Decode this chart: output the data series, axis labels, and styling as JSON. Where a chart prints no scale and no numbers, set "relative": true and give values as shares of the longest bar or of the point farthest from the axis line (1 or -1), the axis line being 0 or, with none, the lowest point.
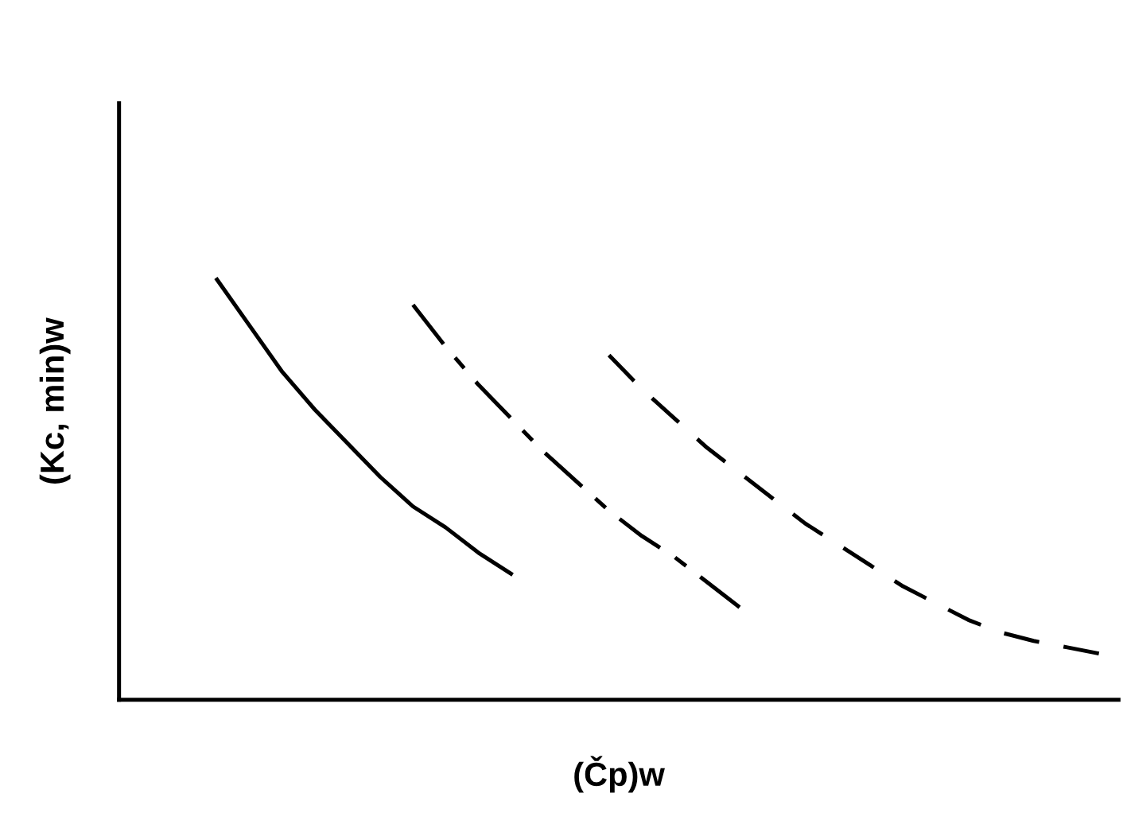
{
  "chart_data": {
    "type": "line",
    "relative": true,
    "xlabel": "(Čp)w",
    "ylabel": "(Kc, min)w",
    "grid": false,
    "legend": false,
    "categories": [
      null,
      null,
      null,
      null,
      null,
      null,
      null,
      null,
      null,
      null,
      null,
      null,
      null,
      null,
      null,
      null,
      null,
      null,
      null,
      null,
      null,
      null,
      null,
      null,
      null,
      null,
      null,
      null,
      null,
      null,
      null
    ],
    "series": [
      {
        "color": "#000000",
        "line_style": "solid",
        "values": [
          null,
          null,
          null,
          1.0,
          0.89,
          0.78,
          0.69,
          0.61,
          0.53,
          0.46,
          0.41,
          0.35,
          0.3,
          null,
          null,
          null,
          null,
          null,
          null,
          null,
          null,
          null,
          null,
          null,
          null,
          null,
          null,
          null,
          null,
          null,
          null
        ]
      },
      {
        "color": "#000000",
        "line_style": "dashdot",
        "values": [
          null,
          null,
          null,
          null,
          null,
          null,
          null,
          null,
          null,
          0.94,
          0.84,
          0.75,
          0.67,
          0.59,
          0.52,
          0.45,
          0.39,
          0.34,
          0.28,
          0.22,
          null,
          null,
          null,
          null,
          null,
          null,
          null,
          null,
          null,
          null,
          null
        ]
      },
      {
        "color": "#000000",
        "line_style": "dashed",
        "values": [
          null,
          null,
          null,
          null,
          null,
          null,
          null,
          null,
          null,
          null,
          null,
          null,
          null,
          null,
          null,
          0.82,
          0.74,
          0.67,
          0.6,
          0.54,
          0.48,
          0.42,
          0.37,
          0.32,
          0.27,
          0.23,
          0.19,
          0.16,
          0.14,
          0.125,
          0.11
        ]
      }
    ]
  }
}
